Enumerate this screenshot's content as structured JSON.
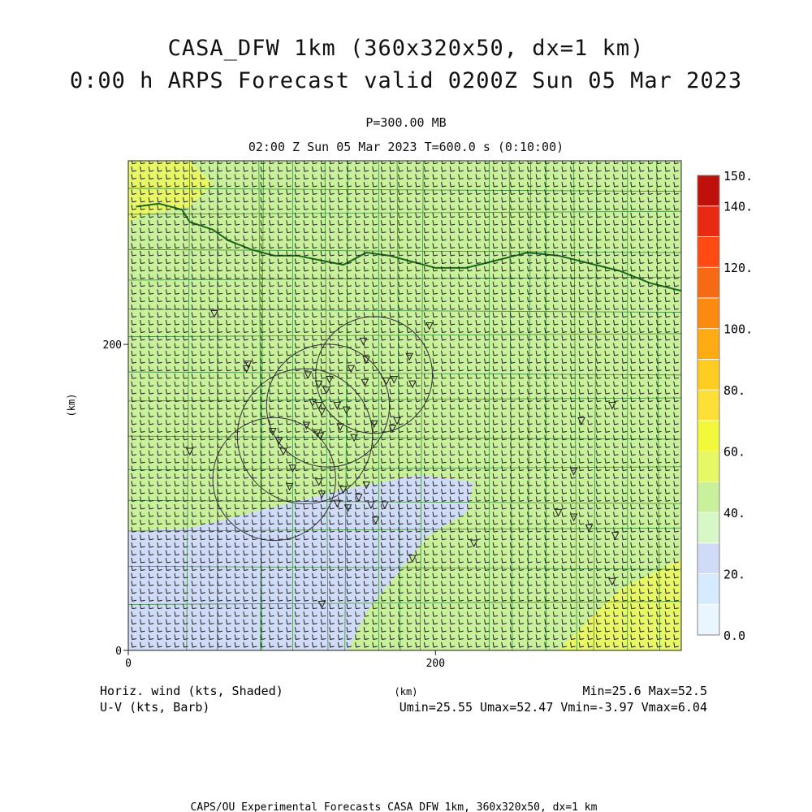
{
  "title": {
    "line1": "CASA_DFW 1km (360x320x50, dx=1 km)",
    "line2": "0:00 h ARPS Forecast valid 0200Z Sun 05 Mar 2023",
    "level": "P=300.00 MB",
    "time": "02:00 Z Sun 05 Mar 2023    T=600.0 s (0:10:00)"
  },
  "footer": {
    "field1": "Horiz. wind (kts, Shaded)",
    "field2": "U-V (kts, Barb)",
    "xunit": "(km)",
    "minmax": "Min=25.6 Max=52.5",
    "uvrange": "Umin=25.55 Umax=52.47 Vmin=-3.97 Vmax=6.04",
    "credit": "CAPS/OU Experimental Forecasts  CASA DFW 1km, 360x320x50, dx=1 km"
  },
  "colors": {
    "grid_line": "#1a6b1a",
    "barb": "#222222",
    "county_line": "#3c8c3c"
  },
  "chart_data": {
    "type": "heatmap",
    "title": "Horiz. wind (kts, Shaded)",
    "xlabel": "(km)",
    "ylabel": "(km)",
    "xlim": [
      0,
      360
    ],
    "ylim": [
      0,
      320
    ],
    "x_ticks": [
      0,
      200
    ],
    "y_ticks": [
      0,
      200
    ],
    "stats": {
      "min": 25.6,
      "max": 52.5,
      "umin": 25.55,
      "umax": 52.47,
      "vmin": -3.97,
      "vmax": 6.04
    },
    "colorbar": {
      "tick_labels": [
        "0.0",
        "20.",
        "40.",
        "60.",
        "80.",
        "100.",
        "120.",
        "140.",
        "150."
      ],
      "tick_values": [
        0,
        20,
        40,
        60,
        80,
        100,
        120,
        140,
        150
      ],
      "levels": [
        {
          "from": 0,
          "to": 10,
          "color": "#e9f6ff"
        },
        {
          "from": 10,
          "to": 20,
          "color": "#d6ebff"
        },
        {
          "from": 20,
          "to": 30,
          "color": "#d0dbf7"
        },
        {
          "from": 30,
          "to": 40,
          "color": "#d8f7c8"
        },
        {
          "from": 40,
          "to": 50,
          "color": "#c9f09a"
        },
        {
          "from": 50,
          "to": 60,
          "color": "#e8f765"
        },
        {
          "from": 60,
          "to": 70,
          "color": "#f2f93a"
        },
        {
          "from": 70,
          "to": 80,
          "color": "#fde037"
        },
        {
          "from": 80,
          "to": 90,
          "color": "#ffcc22"
        },
        {
          "from": 90,
          "to": 100,
          "color": "#ffac14"
        },
        {
          "from": 100,
          "to": 110,
          "color": "#fb8a10"
        },
        {
          "from": 110,
          "to": 120,
          "color": "#f56a12"
        },
        {
          "from": 120,
          "to": 130,
          "color": "#ff4a14"
        },
        {
          "from": 130,
          "to": 140,
          "color": "#e82a12"
        },
        {
          "from": 140,
          "to": 150,
          "color": "#c0100c"
        }
      ]
    },
    "regions": [
      {
        "name": "northwest-max",
        "level": 50,
        "polygon": [
          [
            0,
            320
          ],
          [
            40,
            320
          ],
          [
            55,
            305
          ],
          [
            40,
            290
          ],
          [
            10,
            285
          ],
          [
            0,
            280
          ]
        ]
      },
      {
        "name": "southwest-min",
        "level": 20,
        "polygon": [
          [
            0,
            0
          ],
          [
            143,
            0
          ],
          [
            155,
            25
          ],
          [
            175,
            50
          ],
          [
            195,
            75
          ],
          [
            220,
            90
          ],
          [
            225,
            110
          ],
          [
            190,
            115
          ],
          [
            140,
            105
          ],
          [
            80,
            90
          ],
          [
            40,
            80
          ],
          [
            0,
            78
          ]
        ]
      },
      {
        "name": "southeast-high",
        "level": 50,
        "polygon": [
          [
            360,
            0
          ],
          [
            280,
            0
          ],
          [
            320,
            40
          ],
          [
            360,
            60
          ]
        ]
      }
    ],
    "background_level": 40,
    "radar_rings": [
      {
        "cx": 130,
        "cy": 160,
        "r": 40
      },
      {
        "cx": 115,
        "cy": 140,
        "r": 44
      },
      {
        "cx": 95,
        "cy": 112,
        "r": 40
      },
      {
        "cx": 160,
        "cy": 180,
        "r": 38
      }
    ],
    "stations": [
      [
        56,
        220
      ],
      [
        77,
        184
      ],
      [
        78,
        187
      ],
      [
        40,
        130
      ],
      [
        117,
        180
      ],
      [
        124,
        174
      ],
      [
        131,
        177
      ],
      [
        129,
        170
      ],
      [
        145,
        184
      ],
      [
        155,
        190
      ],
      [
        154,
        175
      ],
      [
        168,
        176
      ],
      [
        173,
        177
      ],
      [
        120,
        162
      ],
      [
        124,
        160
      ],
      [
        126,
        156
      ],
      [
        136,
        160
      ],
      [
        142,
        157
      ],
      [
        116,
        147
      ],
      [
        123,
        142
      ],
      [
        125,
        140
      ],
      [
        138,
        146
      ],
      [
        147,
        139
      ],
      [
        160,
        148
      ],
      [
        172,
        145
      ],
      [
        185,
        174
      ],
      [
        101,
        130
      ],
      [
        98,
        137
      ],
      [
        94,
        143
      ],
      [
        105,
        107
      ],
      [
        126,
        102
      ],
      [
        136,
        96
      ],
      [
        143,
        93
      ],
      [
        155,
        108
      ],
      [
        167,
        95
      ],
      [
        175,
        150
      ],
      [
        196,
        212
      ],
      [
        183,
        192
      ],
      [
        107,
        119
      ],
      [
        124,
        110
      ],
      [
        140,
        105
      ],
      [
        150,
        100
      ],
      [
        158,
        95
      ],
      [
        161,
        85
      ],
      [
        185,
        60
      ],
      [
        225,
        70
      ],
      [
        280,
        90
      ],
      [
        290,
        117
      ],
      [
        295,
        150
      ],
      [
        315,
        160
      ],
      [
        290,
        87
      ],
      [
        300,
        80
      ],
      [
        317,
        75
      ],
      [
        315,
        45
      ],
      [
        126,
        30
      ],
      [
        153,
        202
      ]
    ]
  }
}
